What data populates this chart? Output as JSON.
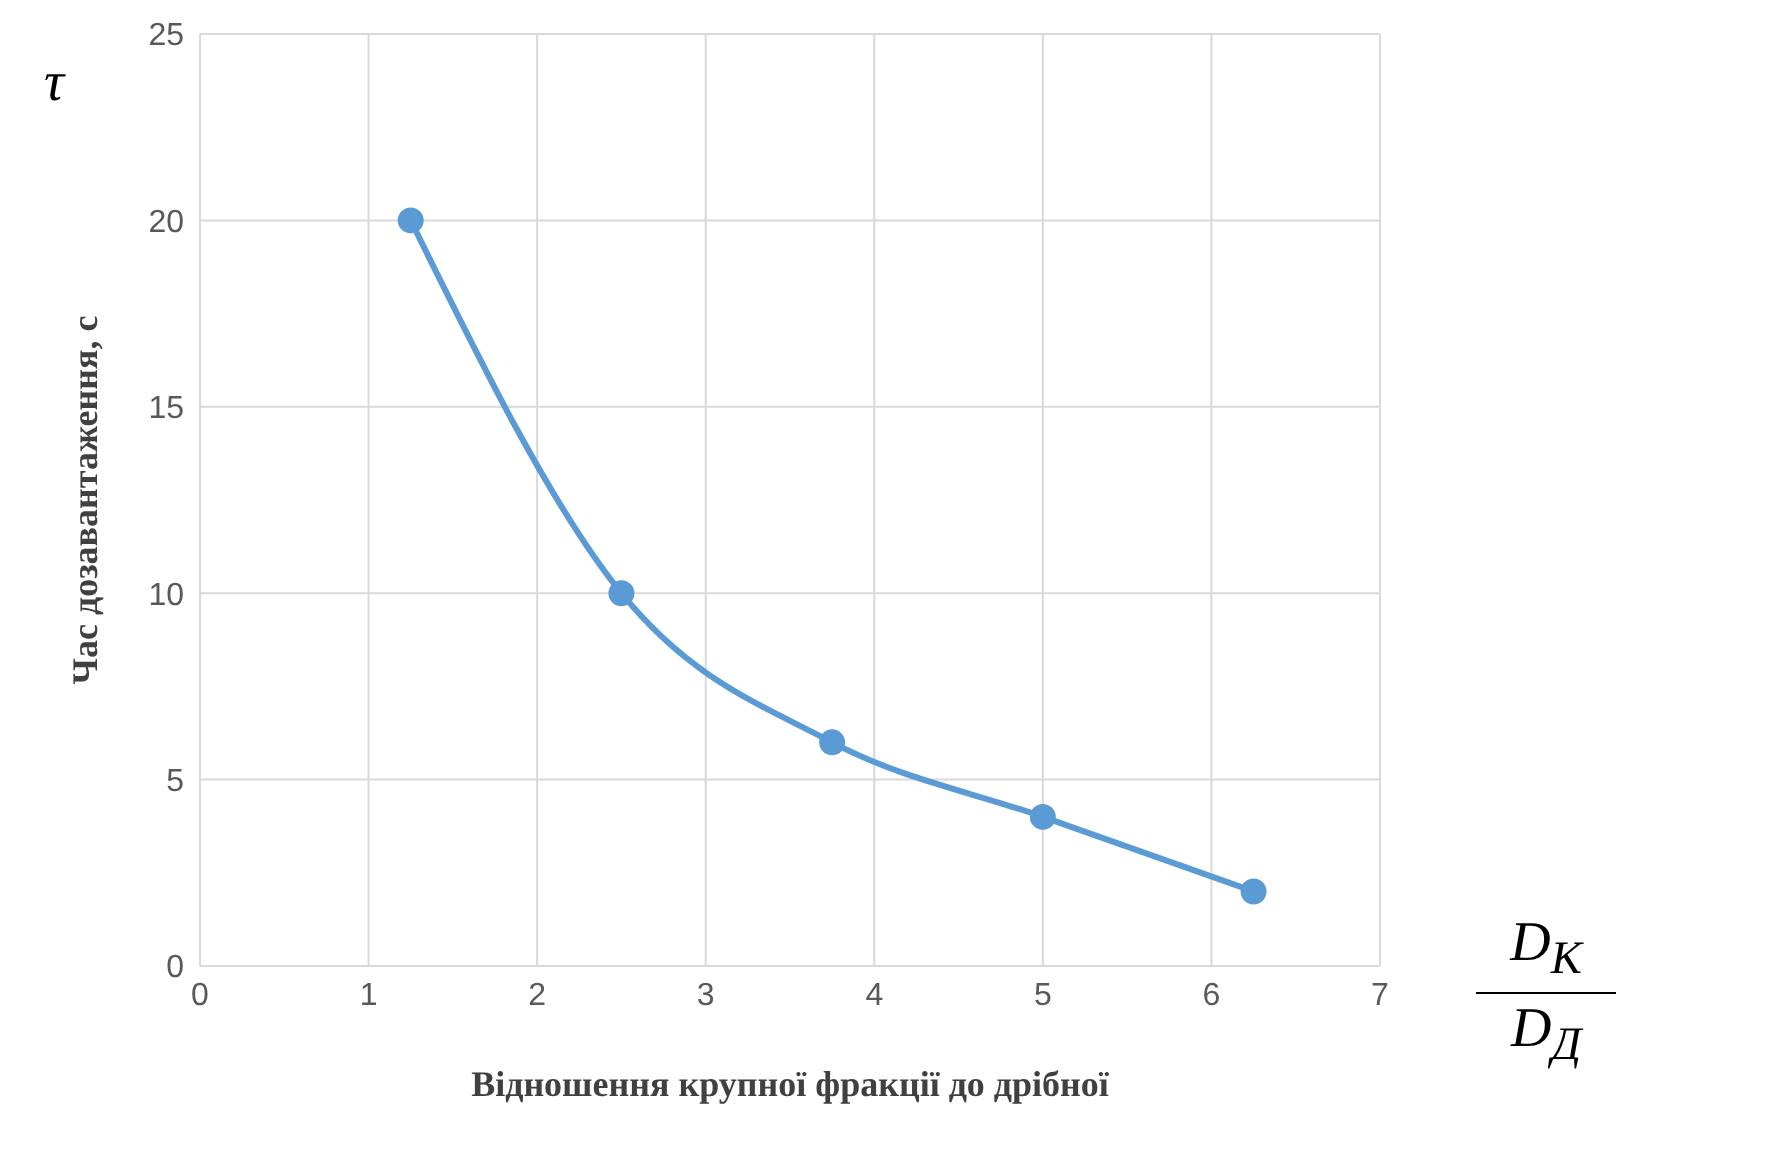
{
  "chart_data": {
    "type": "line",
    "xlabel": "Відношення крупної фракції до дрібної",
    "ylabel": "Час дозавантаження, с",
    "annotations": [
      "τ",
      "D$_{К}$",
      "D$_{Д}$"
    ],
    "x": [
      1.25,
      2.5,
      3.75,
      5,
      6.25
    ],
    "series": [
      {
        "color": "#5b9bd5",
        "values": [
          20,
          10,
          6,
          4,
          2
        ]
      }
    ],
    "xlim": [
      0,
      7
    ],
    "xticks": [
      0,
      1,
      2,
      3,
      4,
      5,
      6,
      7
    ],
    "ylim": [
      0,
      25
    ],
    "yticks": [
      0,
      5,
      10,
      15,
      20,
      25
    ],
    "grid": true,
    "legend": false,
    "marker": "circle",
    "line_style": "solid"
  }
}
